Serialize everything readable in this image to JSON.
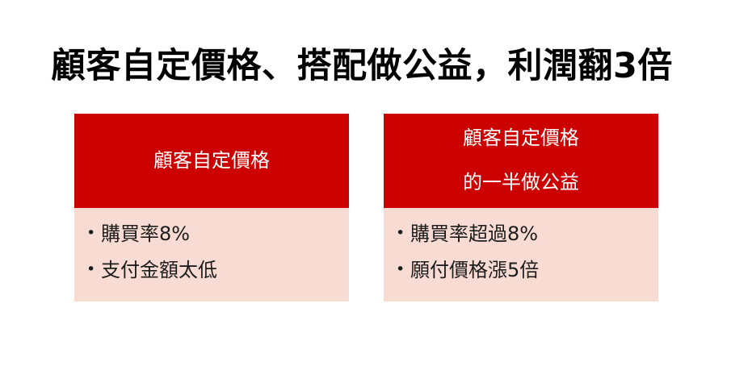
{
  "slide": {
    "title": "顧客自定價格、搭配做公益，利潤翻3倍",
    "bullet_glyph": "•",
    "colors": {
      "header_bg": "#CB0200",
      "body_bg": "#F8DBD3",
      "header_text": "#FFFFFF",
      "title_text": "#000000",
      "body_text": "#1C1C1C"
    },
    "cards": [
      {
        "header_lines": [
          "顧客自定價格"
        ],
        "bullets": [
          "購買率8%",
          "支付金額太低"
        ]
      },
      {
        "header_lines": [
          "顧客自定價格",
          "的一半做公益"
        ],
        "bullets": [
          "購買率超過8%",
          "願付價格漲5倍"
        ]
      }
    ]
  }
}
